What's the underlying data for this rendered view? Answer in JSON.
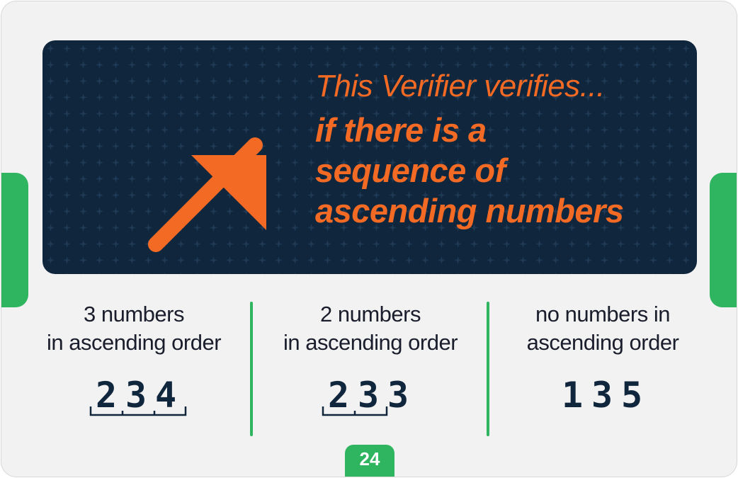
{
  "banner": {
    "lead": "This Verifier verifies...",
    "main": "if there is a\nsequence of\nascending numbers"
  },
  "columns": [
    {
      "label": "3 numbers\nin ascending order",
      "digits": [
        "2",
        "3",
        "4"
      ]
    },
    {
      "label": "2 numbers\nin ascending order",
      "digits": [
        "2",
        "3",
        "3"
      ]
    },
    {
      "label": "no numbers in\nascending order",
      "digits": [
        "1",
        "3",
        "5"
      ]
    }
  ],
  "page_number": "24",
  "colors": {
    "banner_bg": "#10263d",
    "accent_orange": "#f26a24",
    "accent_green": "#2fb460",
    "text_dark": "#1a1d2b"
  },
  "icons": [
    "arrow-up-right-icon",
    "bracket-icon"
  ]
}
